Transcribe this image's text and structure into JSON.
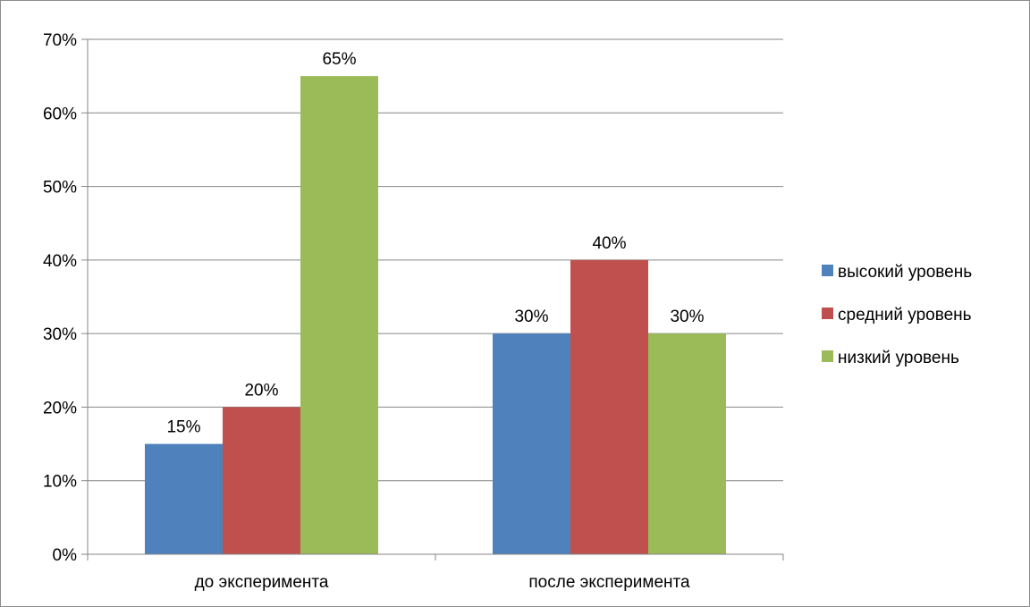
{
  "chart_data": {
    "type": "bar",
    "title": "",
    "xlabel": "",
    "ylabel": "",
    "categories": [
      "до эксперимента",
      "после эксперимента"
    ],
    "series": [
      {
        "name": "высокий уровень",
        "values": [
          15,
          30
        ],
        "labels": [
          "15%",
          "30%"
        ],
        "color": "#4F81BD"
      },
      {
        "name": "средний уровень",
        "values": [
          20,
          40
        ],
        "labels": [
          "20%",
          "40%"
        ],
        "color": "#C0504D"
      },
      {
        "name": "низкий уровень",
        "values": [
          65,
          30
        ],
        "labels": [
          "65%",
          "30%"
        ],
        "color": "#9BBB59"
      }
    ],
    "ylim": [
      0,
      70
    ],
    "yticks": [
      0,
      10,
      20,
      30,
      40,
      50,
      60,
      70
    ],
    "ytick_labels": [
      "0%",
      "10%",
      "20%",
      "30%",
      "40%",
      "50%",
      "60%",
      "70%"
    ],
    "grid": true,
    "legend_position": "right",
    "gridline_color": "#868686",
    "axis_color": "#868686"
  }
}
